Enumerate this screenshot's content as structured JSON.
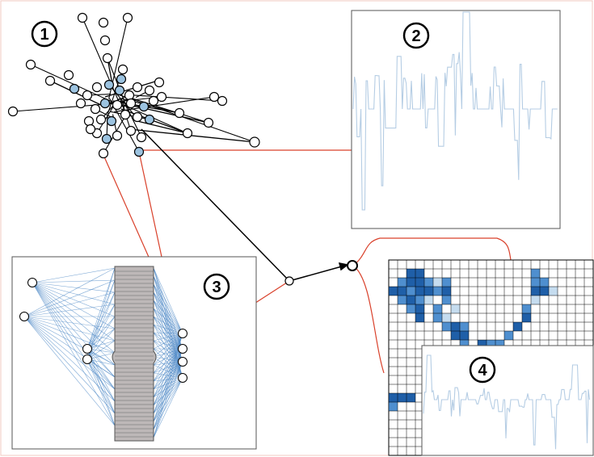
{
  "labels": {
    "network": "1",
    "timeseries": "2",
    "bipartite": "3",
    "matrix": "4"
  },
  "colors": {
    "node_fill": "#ffffff",
    "node_highlight": "#9cc3e0",
    "edge_dark": "#000000",
    "link_red": "#d9402a",
    "series_blue": "#b5cde4",
    "bundle_blue": "#4a86c5",
    "bar_gray": "#bdb8b8",
    "matrix_dark": "#1f5fa8",
    "matrix_mid": "#4f8fcf",
    "matrix_light": "#c5dcef",
    "frame": "#f2c9c0"
  }
}
